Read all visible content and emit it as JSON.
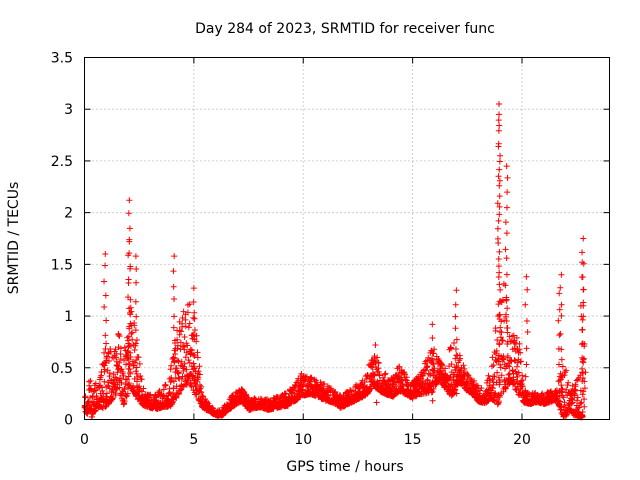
{
  "chart_data": {
    "type": "scatter",
    "title": "Day 284 of 2023, SRMTID for receiver func",
    "xlabel": "GPS time / hours",
    "ylabel": "SRMTID / TECUs",
    "xlim": [
      0,
      24
    ],
    "ylim": [
      0,
      3.5
    ],
    "grid": true,
    "marker": "+",
    "marker_color": "#ff0000",
    "x_ticks": [
      0,
      5,
      10,
      15,
      20
    ],
    "x_tick_labels": [
      "0",
      "5",
      "10",
      "15",
      "20"
    ],
    "y_ticks": [
      0,
      0.5,
      1,
      1.5,
      2,
      2.5,
      3,
      3.5
    ],
    "y_tick_labels": [
      "0",
      "0.5",
      "1",
      "1.5",
      "2",
      "2.5",
      "3",
      "3.5"
    ],
    "series": [
      {
        "name": "SRMTID",
        "profile": {
          "x": [
            0.0,
            0.3,
            0.6,
            0.9,
            1.2,
            1.5,
            1.8,
            2.1,
            2.4,
            2.7,
            3.0,
            3.3,
            3.6,
            3.9,
            4.2,
            4.5,
            4.8,
            5.1,
            5.4,
            5.7,
            6.0,
            6.3,
            6.6,
            6.9,
            7.2,
            7.5,
            7.8,
            8.1,
            8.4,
            8.7,
            9.0,
            9.3,
            9.6,
            9.9,
            10.2,
            10.5,
            10.8,
            11.1,
            11.4,
            11.7,
            12.0,
            12.3,
            12.6,
            12.9,
            13.2,
            13.5,
            13.8,
            14.1,
            14.4,
            14.7,
            15.0,
            15.3,
            15.6,
            15.9,
            16.2,
            16.5,
            16.8,
            17.1,
            17.4,
            17.7,
            18.0,
            18.3,
            18.6,
            18.9,
            19.2,
            19.5,
            19.8,
            20.1,
            20.4,
            20.7,
            21.0,
            21.3,
            21.6,
            21.9,
            22.2,
            22.5,
            22.8
          ],
          "y": [
            0.12,
            0.15,
            0.18,
            0.3,
            0.35,
            0.45,
            0.3,
            0.55,
            0.4,
            0.18,
            0.15,
            0.14,
            0.18,
            0.22,
            0.4,
            0.55,
            0.6,
            0.45,
            0.15,
            0.1,
            0.05,
            0.06,
            0.12,
            0.18,
            0.22,
            0.12,
            0.14,
            0.15,
            0.12,
            0.14,
            0.16,
            0.18,
            0.22,
            0.3,
            0.3,
            0.28,
            0.25,
            0.22,
            0.2,
            0.15,
            0.18,
            0.22,
            0.25,
            0.3,
            0.45,
            0.35,
            0.3,
            0.28,
            0.35,
            0.3,
            0.25,
            0.3,
            0.35,
            0.4,
            0.45,
            0.35,
            0.4,
            0.45,
            0.35,
            0.3,
            0.22,
            0.2,
            0.3,
            0.45,
            0.6,
            0.5,
            0.45,
            0.2,
            0.18,
            0.2,
            0.18,
            0.2,
            0.22,
            0.2,
            0.15,
            0.12,
            0.1
          ],
          "spread": [
            0.08,
            0.35,
            0.15,
            0.5,
            0.45,
            0.5,
            0.4,
            0.6,
            0.5,
            0.12,
            0.1,
            0.12,
            0.15,
            0.25,
            0.5,
            0.6,
            0.65,
            0.55,
            0.1,
            0.05,
            0.04,
            0.05,
            0.08,
            0.1,
            0.12,
            0.08,
            0.08,
            0.08,
            0.08,
            0.08,
            0.1,
            0.12,
            0.12,
            0.2,
            0.15,
            0.12,
            0.12,
            0.12,
            0.1,
            0.1,
            0.1,
            0.12,
            0.12,
            0.15,
            0.3,
            0.2,
            0.15,
            0.15,
            0.2,
            0.15,
            0.12,
            0.15,
            0.25,
            0.35,
            0.15,
            0.15,
            0.45,
            0.25,
            0.15,
            0.12,
            0.12,
            0.12,
            0.25,
            0.8,
            0.8,
            0.35,
            0.5,
            0.1,
            0.08,
            0.08,
            0.08,
            0.08,
            0.08,
            0.5,
            0.15,
            0.3,
            0.4
          ],
          "points_per_interval": 36
        },
        "peaks": [
          {
            "x": 0.95,
            "y": 1.6
          },
          {
            "x": 2.05,
            "y": 2.12
          },
          {
            "x": 2.05,
            "y": 1.72
          },
          {
            "x": 2.35,
            "y": 1.58
          },
          {
            "x": 4.1,
            "y": 1.58
          },
          {
            "x": 5.0,
            "y": 1.27
          },
          {
            "x": 13.3,
            "y": 0.72
          },
          {
            "x": 15.9,
            "y": 0.92
          },
          {
            "x": 17.0,
            "y": 1.25
          },
          {
            "x": 18.95,
            "y": 3.05
          },
          {
            "x": 18.95,
            "y": 2.95
          },
          {
            "x": 19.3,
            "y": 2.45
          },
          {
            "x": 20.2,
            "y": 1.38
          },
          {
            "x": 21.8,
            "y": 1.4
          },
          {
            "x": 21.7,
            "y": 1.22
          },
          {
            "x": 22.8,
            "y": 1.75
          },
          {
            "x": 22.75,
            "y": 1.52
          },
          {
            "x": 22.8,
            "y": 1.1
          },
          {
            "x": 22.85,
            "y": 0.73
          },
          {
            "x": 22.8,
            "y": 0.55
          }
        ]
      }
    ]
  }
}
